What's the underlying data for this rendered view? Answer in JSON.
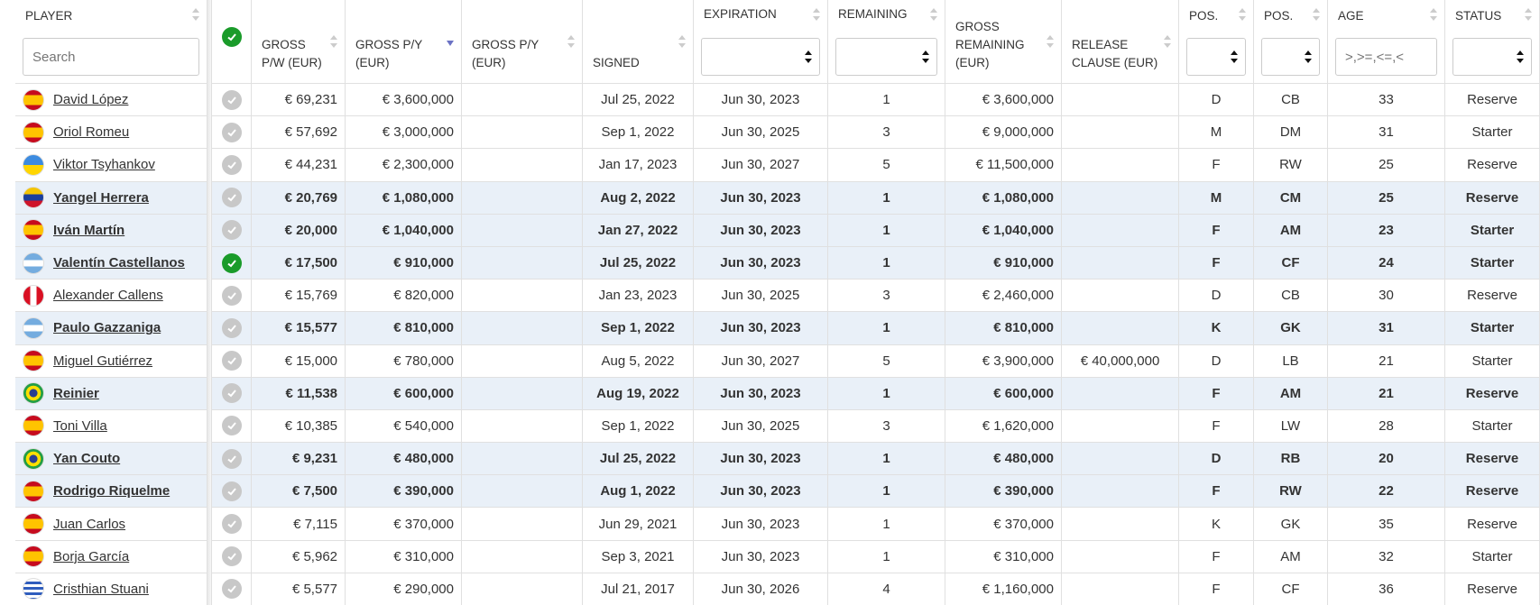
{
  "table": {
    "columns": [
      {
        "label": "PLAYER",
        "placeholder": "Search"
      },
      {
        "label": "GROSS P/W (EUR)"
      },
      {
        "label": "GROSS P/Y (EUR)"
      },
      {
        "label": "GROSS P/Y (EUR)"
      },
      {
        "label": "SIGNED"
      },
      {
        "label": "CONTRACT EXPIRATION",
        "filter": "select"
      },
      {
        "label": "YEARS REMAINING",
        "filter": "select"
      },
      {
        "label": "GROSS REMAINING (EUR)"
      },
      {
        "label": "RELEASE CLAUSE (EUR)"
      },
      {
        "label": "POS.",
        "filter": "select"
      },
      {
        "label": "POS.",
        "filter": "select"
      },
      {
        "label": "AGE",
        "placeholder": ">,>=,<=,<"
      },
      {
        "label": "STATUS",
        "filter": "select"
      }
    ],
    "rows": [
      {
        "cells": [
          "David López",
          "€ 69,231",
          "€ 3,600,000",
          null,
          "Jul 25, 2022",
          "Jun 30, 2023",
          "1",
          "€ 3,600,000",
          null,
          "D",
          "CB",
          "33",
          "Reserve"
        ],
        "highlighted": false,
        "checked": false
      },
      {
        "cells": [
          "Oriol Romeu",
          "€ 57,692",
          "€ 3,000,000",
          null,
          "Sep 1, 2022",
          "Jun 30, 2025",
          "3",
          "€ 9,000,000",
          null,
          "M",
          "DM",
          "31",
          "Starter"
        ],
        "highlighted": false,
        "checked": false
      },
      {
        "cells": [
          "Viktor Tsyhankov",
          "€ 44,231",
          "€ 2,300,000",
          null,
          "Jan 17, 2023",
          "Jun 30, 2027",
          "5",
          "€ 11,500,000",
          null,
          "F",
          "RW",
          "25",
          "Reserve"
        ],
        "highlighted": false,
        "checked": false
      },
      {
        "cells": [
          "Yangel Herrera",
          "€ 20,769",
          "€ 1,080,000",
          null,
          "Aug 2, 2022",
          "Jun 30, 2023",
          "1",
          "€ 1,080,000",
          null,
          "M",
          "CM",
          "25",
          "Reserve"
        ],
        "highlighted": true,
        "checked": false
      },
      {
        "cells": [
          "Iván Martín",
          "€ 20,000",
          "€ 1,040,000",
          null,
          "Jan 27, 2022",
          "Jun 30, 2023",
          "1",
          "€ 1,040,000",
          null,
          "F",
          "AM",
          "23",
          "Starter"
        ],
        "highlighted": true,
        "checked": false
      },
      {
        "cells": [
          "Valentín Castellanos",
          "€ 17,500",
          "€ 910,000",
          null,
          "Jul 25, 2022",
          "Jun 30, 2023",
          "1",
          "€ 910,000",
          null,
          "F",
          "CF",
          "24",
          "Starter"
        ],
        "highlighted": true,
        "checked": true
      },
      {
        "cells": [
          "Alexander Callens",
          "€ 15,769",
          "€ 820,000",
          null,
          "Jan 23, 2023",
          "Jun 30, 2025",
          "3",
          "€ 2,460,000",
          null,
          "D",
          "CB",
          "30",
          "Reserve"
        ],
        "highlighted": false,
        "checked": false
      },
      {
        "cells": [
          "Paulo Gazzaniga",
          "€ 15,577",
          "€ 810,000",
          null,
          "Sep 1, 2022",
          "Jun 30, 2023",
          "1",
          "€ 810,000",
          null,
          "K",
          "GK",
          "31",
          "Starter"
        ],
        "highlighted": true,
        "checked": false
      },
      {
        "cells": [
          "Miguel Gutiérrez",
          "€ 15,000",
          "€ 780,000",
          null,
          "Aug 5, 2022",
          "Jun 30, 2027",
          "5",
          "€ 3,900,000",
          "€ 40,000,000",
          "D",
          "LB",
          "21",
          "Starter"
        ],
        "highlighted": false,
        "checked": false
      },
      {
        "cells": [
          "Reinier",
          "€ 11,538",
          "€ 600,000",
          null,
          "Aug 19, 2022",
          "Jun 30, 2023",
          "1",
          "€ 600,000",
          null,
          "F",
          "AM",
          "21",
          "Reserve"
        ],
        "highlighted": true,
        "checked": false
      },
      {
        "cells": [
          "Toni Villa",
          "€ 10,385",
          "€ 540,000",
          null,
          "Sep 1, 2022",
          "Jun 30, 2025",
          "3",
          "€ 1,620,000",
          null,
          "F",
          "LW",
          "28",
          "Starter"
        ],
        "highlighted": false,
        "checked": false
      },
      {
        "cells": [
          "Yan Couto",
          "€ 9,231",
          "€ 480,000",
          null,
          "Jul 25, 2022",
          "Jun 30, 2023",
          "1",
          "€ 480,000",
          null,
          "D",
          "RB",
          "20",
          "Reserve"
        ],
        "highlighted": true,
        "checked": false
      },
      {
        "cells": [
          "Rodrigo Riquelme",
          "€ 7,500",
          "€ 390,000",
          null,
          "Aug 1, 2022",
          "Jun 30, 2023",
          "1",
          "€ 390,000",
          null,
          "F",
          "RW",
          "22",
          "Reserve"
        ],
        "highlighted": true,
        "checked": false
      },
      {
        "cells": [
          "Juan Carlos",
          "€ 7,115",
          "€ 370,000",
          null,
          "Jun 29, 2021",
          "Jun 30, 2023",
          "1",
          "€ 370,000",
          null,
          "K",
          "GK",
          "35",
          "Reserve"
        ],
        "highlighted": false,
        "checked": false
      },
      {
        "cells": [
          "Borja García",
          "€ 5,962",
          "€ 310,000",
          null,
          "Sep 3, 2021",
          "Jun 30, 2023",
          "1",
          "€ 310,000",
          null,
          "F",
          "AM",
          "32",
          "Starter"
        ],
        "highlighted": false,
        "checked": false
      },
      {
        "cells": [
          "Cristhian Stuani",
          "€ 5,577",
          "€ 290,000",
          null,
          "Jul 21, 2017",
          "Jun 30, 2026",
          "4",
          "€ 1,160,000",
          null,
          "F",
          "CF",
          "36",
          "Reserve"
        ],
        "highlighted": false,
        "checked": false
      }
    ]
  }
}
